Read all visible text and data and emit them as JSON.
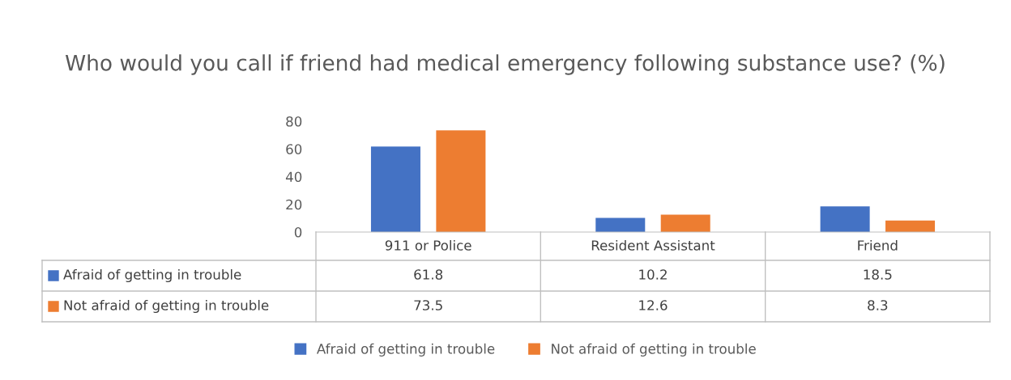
{
  "chart_data": {
    "type": "bar",
    "title": "Who would you call if friend had medical emergency following substance use? (%)",
    "categories": [
      "911 or Police",
      "Resident Assistant",
      "Friend"
    ],
    "series": [
      {
        "name": "Afraid of getting in trouble",
        "color": "#4472c4",
        "values": [
          61.8,
          10.2,
          18.5
        ]
      },
      {
        "name": "Not afraid of getting in trouble",
        "color": "#ed7d31",
        "values": [
          73.5,
          12.6,
          8.3
        ]
      }
    ],
    "ylim": [
      0,
      80
    ],
    "yticks": [
      0,
      20,
      40,
      60,
      80
    ],
    "grid": false,
    "data_labels": true,
    "legend": "bottom"
  }
}
